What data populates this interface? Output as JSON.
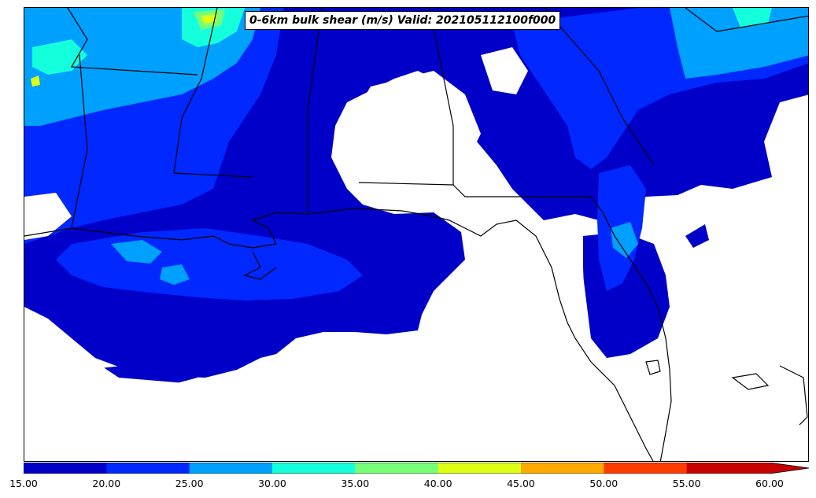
{
  "map": {
    "title": "0-6km bulk shear (m/s) Valid: 2021051121​00f000",
    "region": "Gulf Coast / Southeast United States",
    "projection_extent_note": "",
    "colors": {
      "land_border": "#000000",
      "background": "#ffffff",
      "levels": [
        "#0000c8",
        "#0028ff",
        "#00a0ff",
        "#14ffdc",
        "#78ff78",
        "#dcff14",
        "#ffaa00",
        "#ff3c00",
        "#c80000"
      ]
    }
  },
  "colorbar": {
    "ticks": [
      "15.00",
      "20.00",
      "25.00",
      "30.00",
      "35.00",
      "40.00",
      "45.00",
      "50.00",
      "55.00",
      "60.00"
    ],
    "bounds": [
      15,
      20,
      25,
      30,
      35,
      40,
      45,
      50,
      55,
      60
    ],
    "extend": "max"
  }
}
